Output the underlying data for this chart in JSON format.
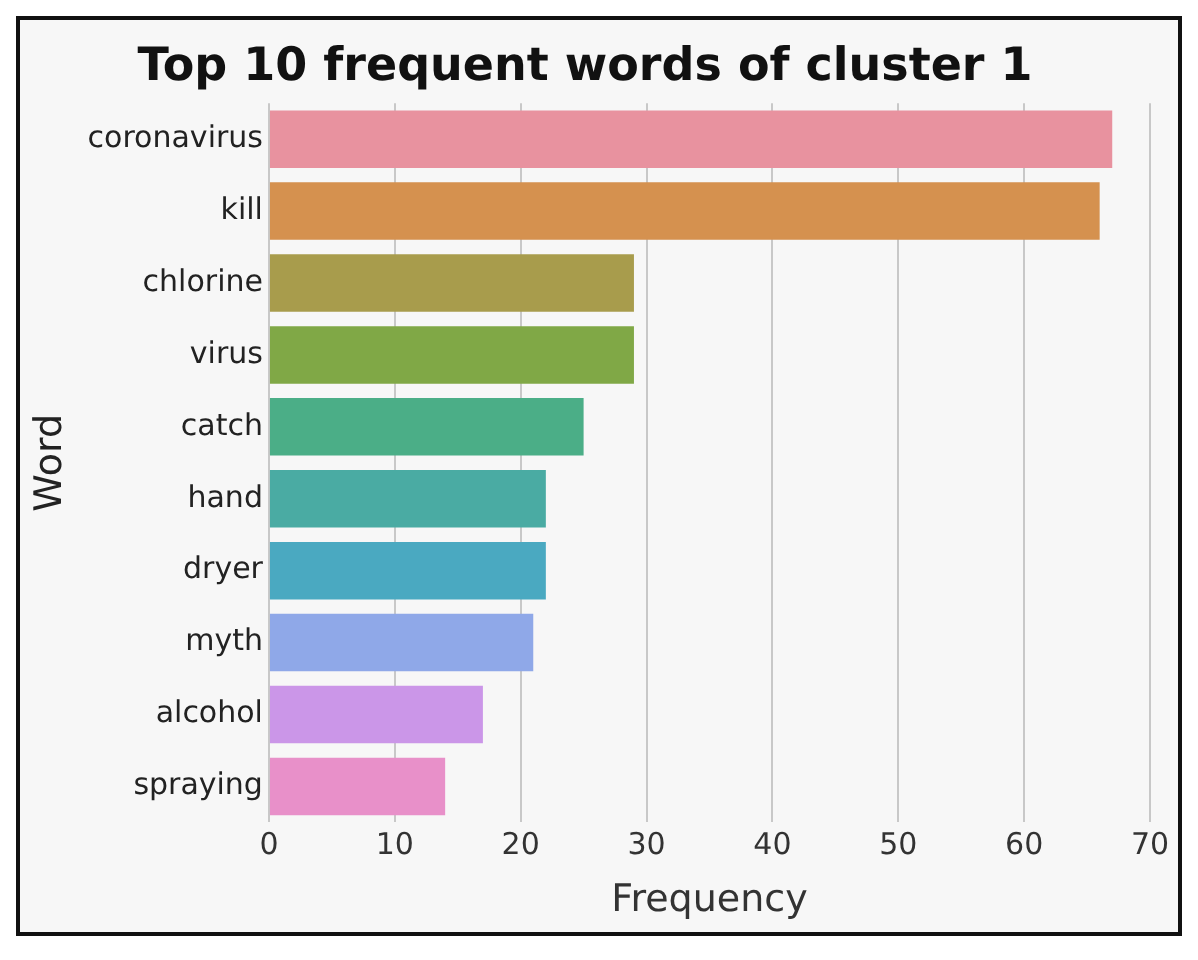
{
  "chart_data": {
    "type": "bar",
    "orientation": "horizontal",
    "title": "Top 10 frequent words of cluster 1",
    "xlabel": "Frequency",
    "ylabel": "Word",
    "categories": [
      "coronavirus",
      "kill",
      "chlorine",
      "virus",
      "catch",
      "hand",
      "dryer",
      "myth",
      "alcohol",
      "spraying"
    ],
    "values": [
      67,
      66,
      29,
      29,
      25,
      22,
      22,
      21,
      17,
      14
    ],
    "colors": [
      "#e8929f",
      "#d5914f",
      "#a89c4c",
      "#80a846",
      "#4bae87",
      "#4aaba3",
      "#4aa9c1",
      "#8fa8e8",
      "#cb96e8",
      "#e890c9"
    ],
    "xlim": [
      0,
      70
    ],
    "xticks": [
      0,
      10,
      20,
      30,
      40,
      50,
      60,
      70
    ],
    "grid": "x"
  }
}
